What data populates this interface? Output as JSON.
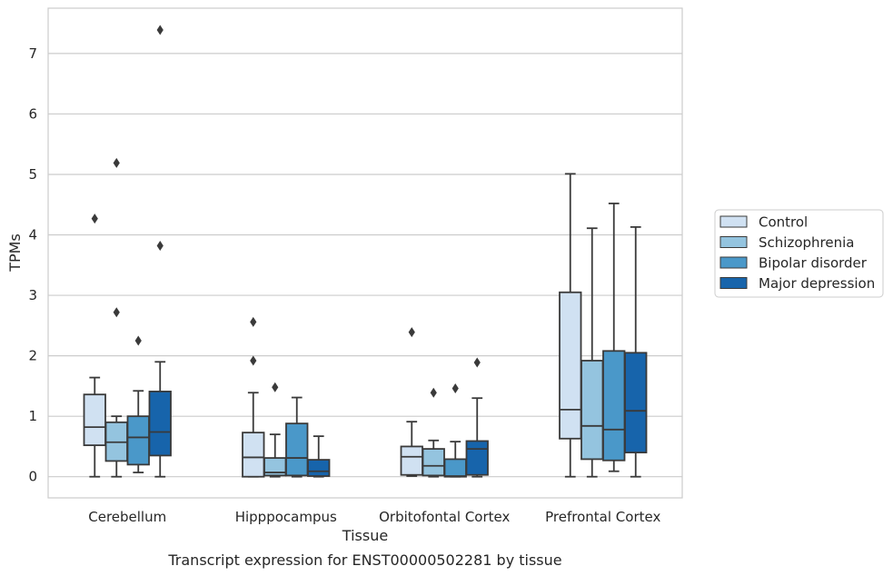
{
  "chart_data": {
    "type": "box",
    "title": "",
    "caption": "Transcript expression for ENST00000502281 by tissue",
    "xlabel": "Tissue",
    "ylabel": "TPMs",
    "ylim": [
      -0.35,
      7.75
    ],
    "yticks": [
      0,
      1,
      2,
      3,
      4,
      5,
      6,
      7
    ],
    "grid": "horizontal",
    "legend_position": "right",
    "categories": [
      "Cerebellum",
      "Hipppocampus",
      "Orbitofontal Cortex",
      "Prefrontal Cortex"
    ],
    "series": [
      {
        "name": "Control",
        "color": "#d0e1f2",
        "boxes": [
          {
            "whislo": 0.0,
            "q1": 0.52,
            "med": 0.82,
            "q3": 1.36,
            "whishi": 1.64,
            "fliers": [
              4.27
            ]
          },
          {
            "whislo": 0.0,
            "q1": 0.0,
            "med": 0.32,
            "q3": 0.73,
            "whishi": 1.39,
            "fliers": [
              1.92,
              2.56
            ]
          },
          {
            "whislo": 0.01,
            "q1": 0.03,
            "med": 0.33,
            "q3": 0.5,
            "whishi": 0.91,
            "fliers": [
              2.39
            ]
          },
          {
            "whislo": 0.0,
            "q1": 0.63,
            "med": 1.11,
            "q3": 3.05,
            "whishi": 5.01,
            "fliers": []
          }
        ]
      },
      {
        "name": "Schizophrenia",
        "color": "#94c4df",
        "boxes": [
          {
            "whislo": 0.0,
            "q1": 0.26,
            "med": 0.57,
            "q3": 0.9,
            "whishi": 1.0,
            "fliers": [
              2.72,
              5.19
            ]
          },
          {
            "whislo": 0.0,
            "q1": 0.02,
            "med": 0.07,
            "q3": 0.31,
            "whishi": 0.7,
            "fliers": [
              1.48
            ]
          },
          {
            "whislo": 0.0,
            "q1": 0.02,
            "med": 0.18,
            "q3": 0.46,
            "whishi": 0.6,
            "fliers": [
              1.39
            ]
          },
          {
            "whislo": 0.0,
            "q1": 0.29,
            "med": 0.84,
            "q3": 1.92,
            "whishi": 4.11,
            "fliers": []
          }
        ]
      },
      {
        "name": "Bipolar disorder",
        "color": "#4a98c9",
        "boxes": [
          {
            "whislo": 0.07,
            "q1": 0.2,
            "med": 0.65,
            "q3": 1.0,
            "whishi": 1.42,
            "fliers": [
              2.25
            ]
          },
          {
            "whislo": 0.0,
            "q1": 0.02,
            "med": 0.31,
            "q3": 0.88,
            "whishi": 1.31,
            "fliers": []
          },
          {
            "whislo": 0.0,
            "q1": 0.0,
            "med": 0.01,
            "q3": 0.29,
            "whishi": 0.58,
            "fliers": [
              1.46
            ]
          },
          {
            "whislo": 0.09,
            "q1": 0.27,
            "med": 0.78,
            "q3": 2.08,
            "whishi": 4.52,
            "fliers": []
          }
        ]
      },
      {
        "name": "Major depression",
        "color": "#1764ab",
        "boxes": [
          {
            "whislo": 0.0,
            "q1": 0.35,
            "med": 0.74,
            "q3": 1.41,
            "whishi": 1.9,
            "fliers": [
              3.82,
              7.39
            ]
          },
          {
            "whislo": 0.0,
            "q1": 0.01,
            "med": 0.09,
            "q3": 0.28,
            "whishi": 0.67,
            "fliers": []
          },
          {
            "whislo": 0.0,
            "q1": 0.03,
            "med": 0.46,
            "q3": 0.59,
            "whishi": 1.3,
            "fliers": [
              1.89
            ]
          },
          {
            "whislo": 0.0,
            "q1": 0.4,
            "med": 1.09,
            "q3": 2.05,
            "whishi": 4.13,
            "fliers": []
          }
        ]
      }
    ]
  }
}
